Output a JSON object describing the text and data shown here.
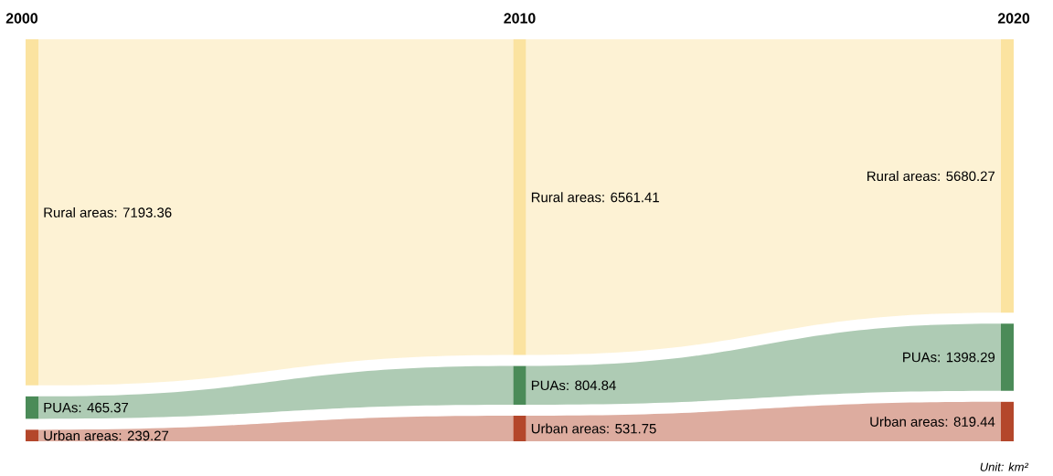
{
  "chart_data": {
    "type": "other",
    "categories": [
      "2000",
      "2010",
      "2020"
    ],
    "series": [
      {
        "color": "#fbe3a0",
        "values": [
          7193.36,
          6561.41,
          5680.27
        ],
        "value_labels": [
          "Rural areas: 7193.36",
          "Rural areas: 6561.41",
          "Rural areas: 5680.27"
        ]
      },
      {
        "color": "#4b8b58",
        "values": [
          465.37,
          804.84,
          1398.29
        ],
        "value_labels": [
          "PUAs: 465.37",
          "PUAs: 804.84",
          "PUAs: 1398.29"
        ]
      },
      {
        "color": "#b4472b",
        "values": [
          239.27,
          531.75,
          819.44
        ],
        "value_labels": [
          "Urban areas: 239.27",
          "Urban areas: 531.75",
          "Urban areas: 819.44"
        ]
      }
    ],
    "annotations": [
      "Unit: km²"
    ]
  }
}
